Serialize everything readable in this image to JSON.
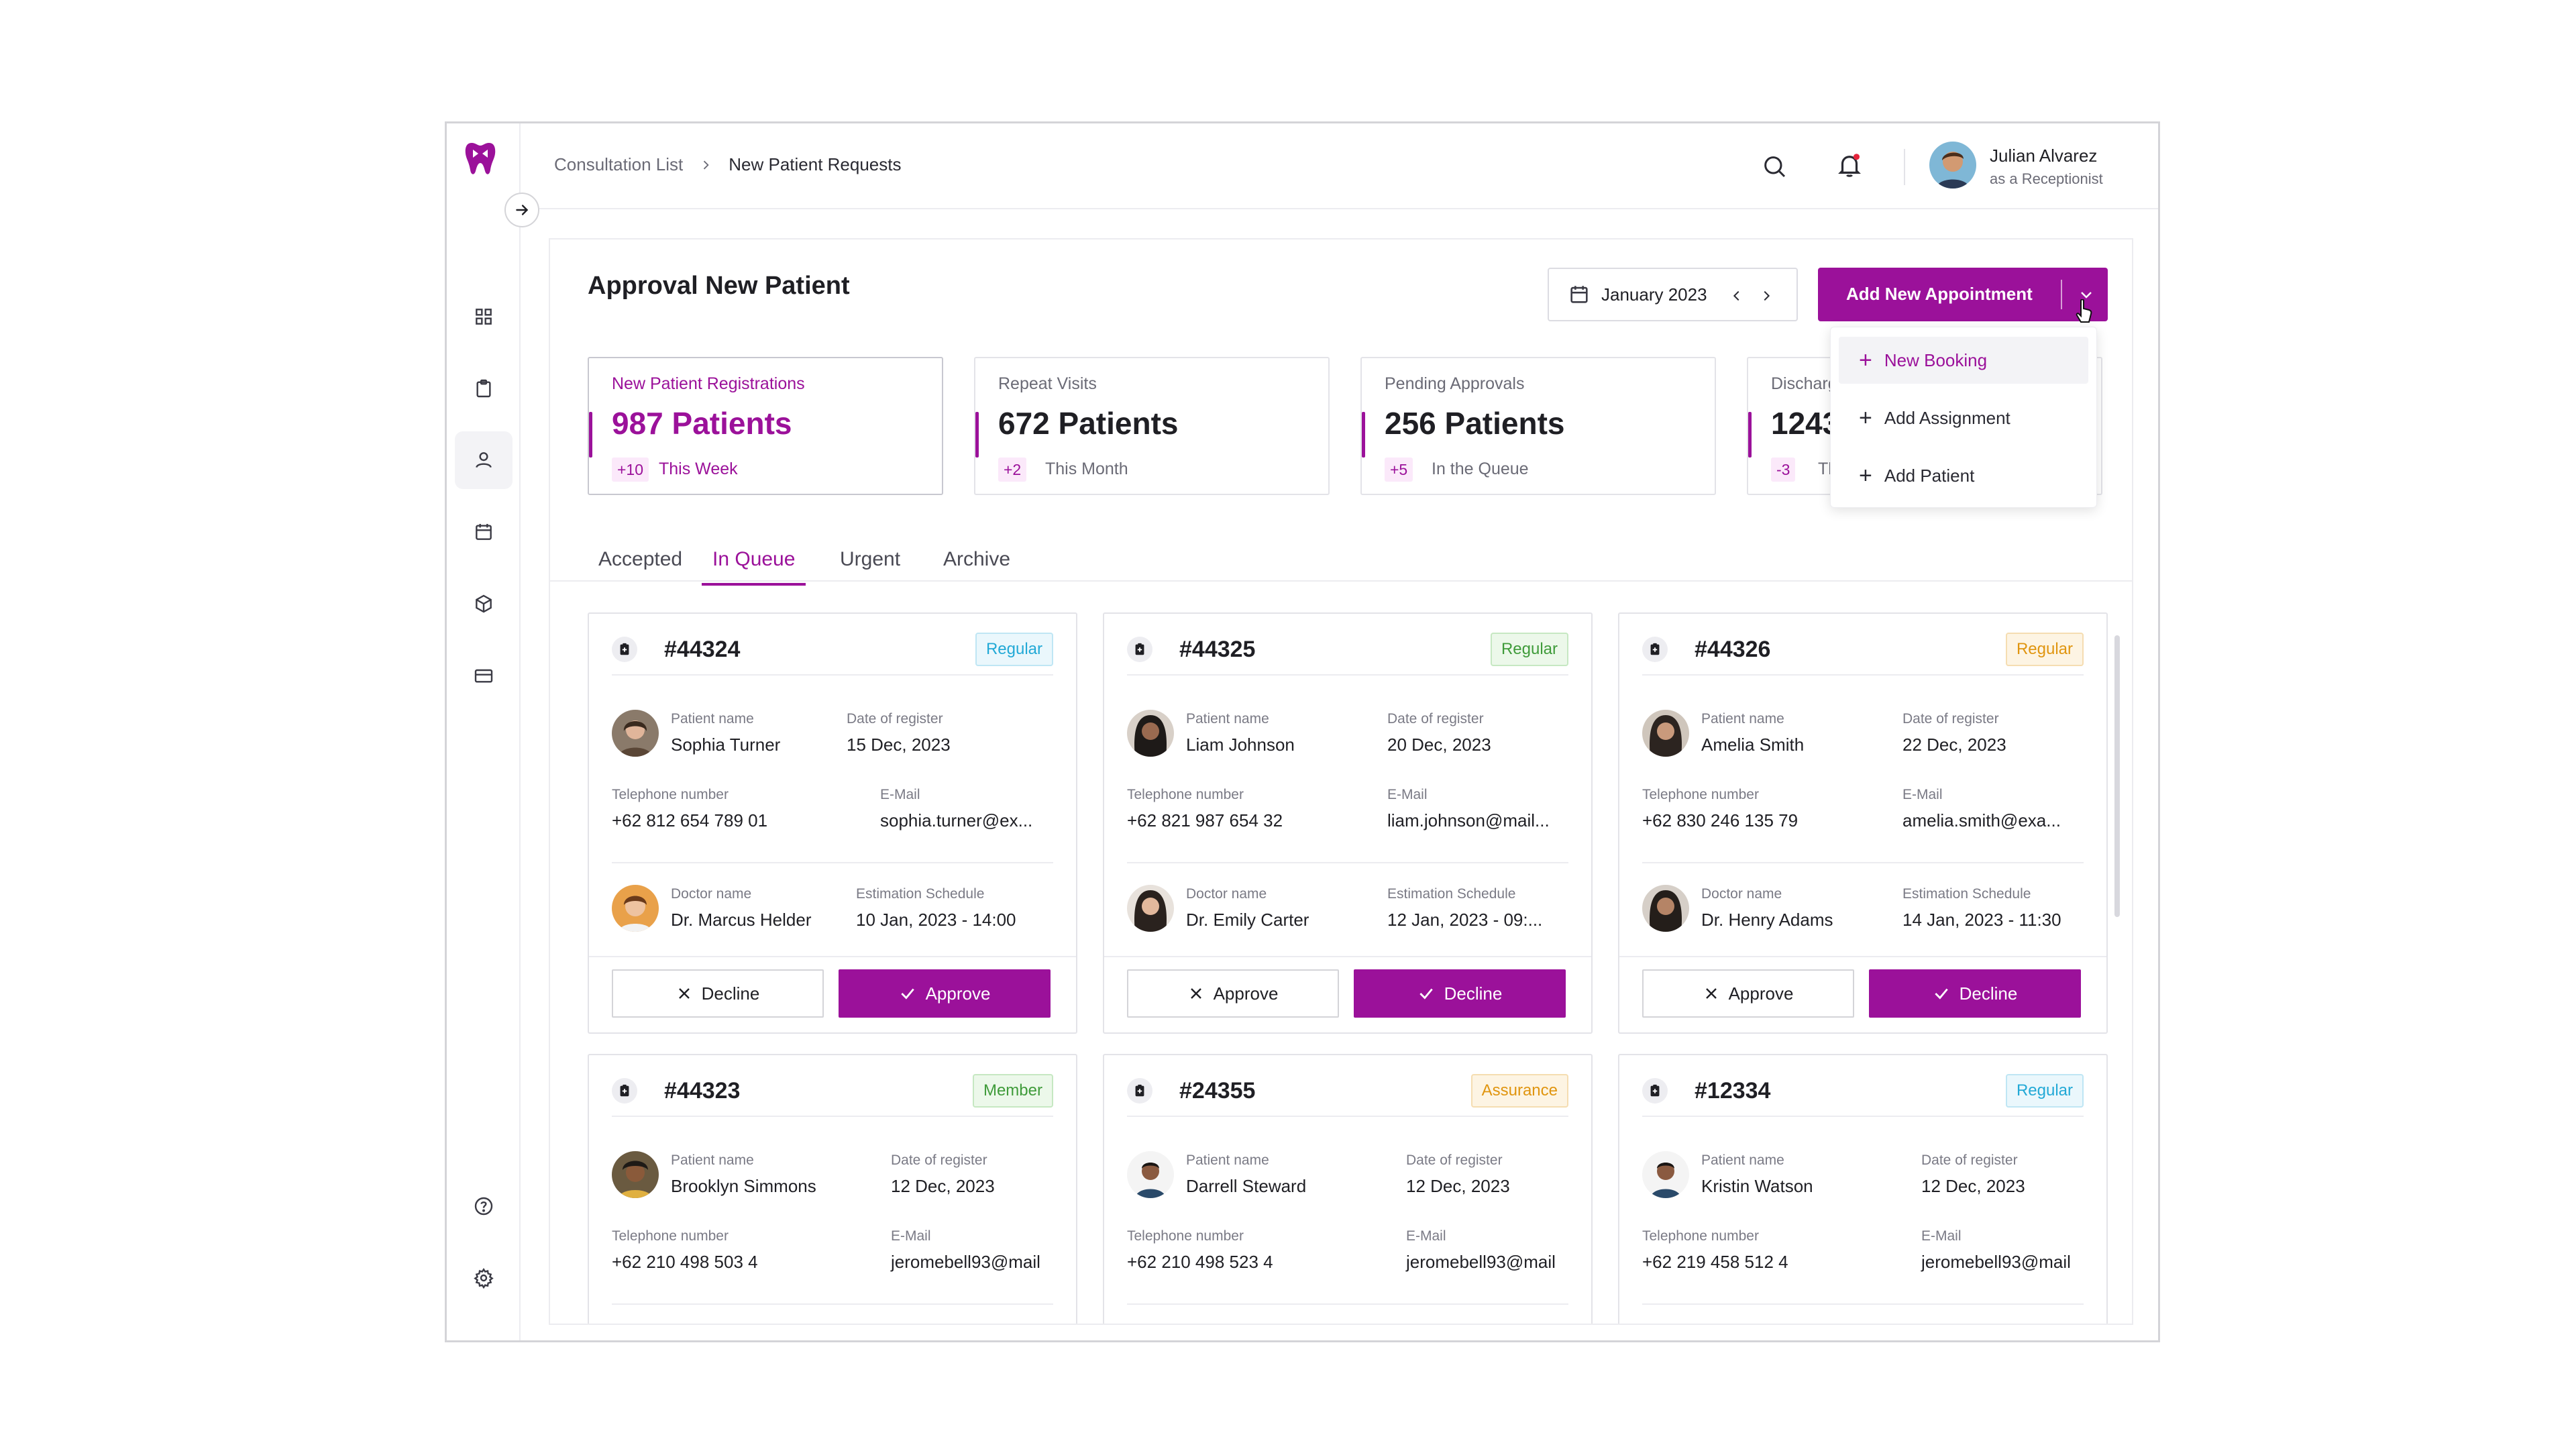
{
  "breadcrumb": {
    "parent": "Consultation List",
    "current": "New Patient Requests"
  },
  "user": {
    "name": "Julian Alvarez",
    "role": "as a Receptionist"
  },
  "page": {
    "title": "Approval New Patient"
  },
  "month_picker": {
    "label": "January 2023"
  },
  "add_button": {
    "label": "Add New  Appointment"
  },
  "dropdown": {
    "items": [
      {
        "label": "New Booking"
      },
      {
        "label": "Add Assignment"
      },
      {
        "label": "Add Patient"
      }
    ]
  },
  "stats": [
    {
      "title": "New Patient Registrations",
      "value": "987 Patients",
      "delta": "+10",
      "period": "This Week"
    },
    {
      "title": "Repeat Visits",
      "value": "672 Patients",
      "delta": "+2",
      "period": "This Month"
    },
    {
      "title": "Pending Approvals",
      "value": "256 Patients",
      "delta": "+5",
      "period": "In the Queue"
    },
    {
      "title": "Discharg",
      "value": "1243",
      "delta": "-3",
      "period": "Thi"
    }
  ],
  "tabs": [
    {
      "label": "Accepted"
    },
    {
      "label": "In Queue"
    },
    {
      "label": "Urgent"
    },
    {
      "label": "Archive"
    }
  ],
  "labels": {
    "patient_name": "Patient name",
    "date_register": "Date of register",
    "telephone": "Telephone number",
    "email": "E-Mail",
    "doctor_name": "Doctor name",
    "estimation": "Estimation Schedule"
  },
  "cards": [
    {
      "id": "#44324",
      "badge": "Regular",
      "patient": "Sophia Turner",
      "date": "15 Dec, 2023",
      "phone": "+62 812 654 789 01",
      "email": "sophia.turner@ex...",
      "doctor": "Dr. Marcus Helder",
      "schedule": "10 Jan, 2023 - 14:00",
      "btn_left": "Decline",
      "btn_right": "Approve"
    },
    {
      "id": "#44325",
      "badge": "Regular",
      "patient": "Liam Johnson",
      "date": "20 Dec, 2023",
      "phone": "+62 821 987 654 32",
      "email": "liam.johnson@mail...",
      "doctor": "Dr. Emily Carter",
      "schedule": "12 Jan, 2023 - 09:...",
      "btn_left": "Approve",
      "btn_right": "Decline"
    },
    {
      "id": "#44326",
      "badge": "Regular",
      "patient": "Amelia Smith",
      "date": "22 Dec, 2023",
      "phone": "+62 830 246 135 79",
      "email": "amelia.smith@exa...",
      "doctor": "Dr. Henry Adams",
      "schedule": "14 Jan, 2023 - 11:30",
      "btn_left": "Approve",
      "btn_right": "Decline"
    },
    {
      "id": "#44323",
      "badge": "Member",
      "patient": "Brooklyn Simmons",
      "date": "12 Dec, 2023",
      "phone": "+62 210 498 503 4",
      "email": "jeromebell93@mail"
    },
    {
      "id": "#24355",
      "badge": "Assurance",
      "patient": "Darrell Steward",
      "date": "12 Dec, 2023",
      "phone": "+62 210 498 523 4",
      "email": "jeromebell93@mail"
    },
    {
      "id": "#12334",
      "badge": "Regular",
      "patient": "Kristin Watson",
      "date": "12 Dec, 2023",
      "phone": "+62 219 458 512 4",
      "email": "jeromebell93@mail"
    }
  ],
  "colors": {
    "accent": "#9b119a",
    "badge_blue": "#22a9d6",
    "badge_green": "#3f9b3a",
    "badge_orange": "#e0950f"
  },
  "icons": {
    "logo": "tooth-icon",
    "sidebar": [
      "dashboard-icon",
      "clipboard-icon",
      "user-icon",
      "calendar-icon",
      "box-icon",
      "card-icon",
      "help-icon",
      "settings-icon"
    ],
    "top": [
      "search-icon",
      "bell-icon"
    ]
  }
}
